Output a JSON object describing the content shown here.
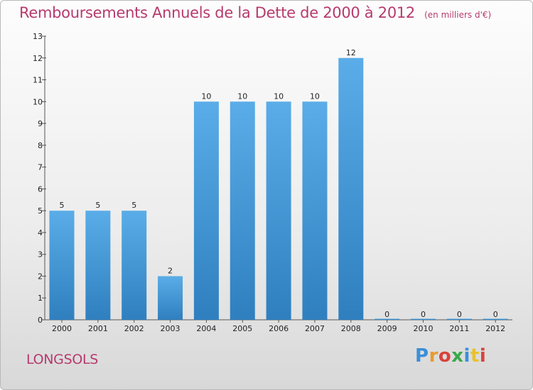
{
  "chart_data": {
    "type": "bar",
    "title": "Remboursements Annuels de la Dette de 2000 à 2012",
    "unit": "(en milliers d'€)",
    "categories": [
      "2000",
      "2001",
      "2002",
      "2003",
      "2004",
      "2005",
      "2006",
      "2007",
      "2008",
      "2009",
      "2010",
      "2011",
      "2012"
    ],
    "values": [
      5,
      5,
      5,
      2,
      10,
      10,
      10,
      10,
      12,
      0,
      0,
      0,
      0
    ],
    "ylim": [
      0,
      13
    ],
    "yticks": [
      0,
      1,
      2,
      3,
      4,
      5,
      6,
      7,
      8,
      9,
      10,
      11,
      12,
      13
    ],
    "grid": false,
    "bar_color_top": "#5aade8",
    "bar_color_bottom": "#2f7fbf",
    "title_color": "#b73a6e"
  },
  "location": "LONGSOLS",
  "logo": {
    "letters": [
      "P",
      "r",
      "o",
      "x",
      "i",
      "t",
      "i"
    ],
    "colors": [
      "#3a8fd8",
      "#e89a2c",
      "#d8423a",
      "#3aa84a",
      "#3a8fd8",
      "#e8c22c",
      "#d8423a"
    ]
  }
}
